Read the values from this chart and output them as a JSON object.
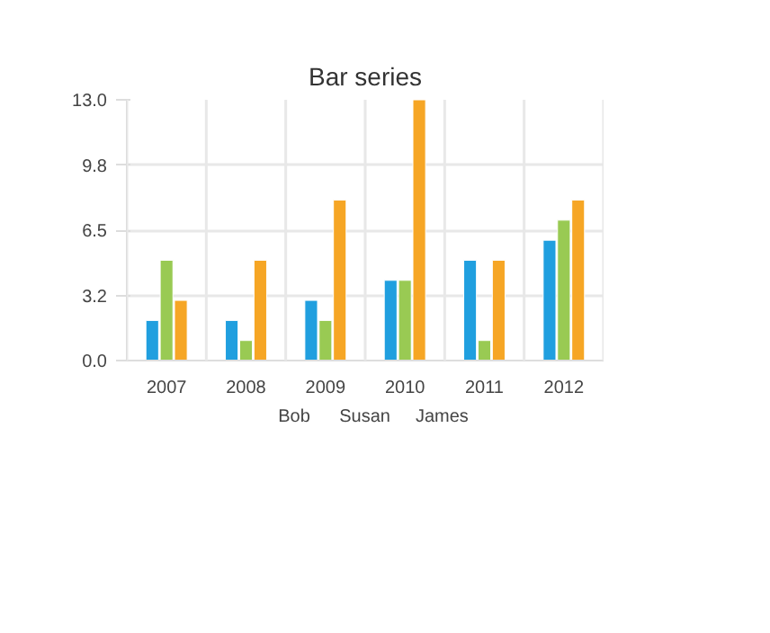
{
  "chart_data": {
    "type": "bar",
    "title": "Bar series",
    "categories": [
      "2007",
      "2008",
      "2009",
      "2010",
      "2011",
      "2012"
    ],
    "series": [
      {
        "name": "Bob",
        "color": "#209fdf",
        "values": [
          2,
          2,
          3,
          4,
          5,
          6
        ]
      },
      {
        "name": "Susan",
        "color": "#99ca53",
        "values": [
          5,
          1,
          2,
          4,
          1,
          7
        ]
      },
      {
        "name": "James",
        "color": "#f6a625",
        "values": [
          3,
          5,
          8,
          13,
          5,
          8
        ]
      }
    ],
    "ylim": [
      0,
      13
    ],
    "yticks": [
      {
        "value": 0,
        "label": "0.0"
      },
      {
        "value": 3.25,
        "label": "3.2"
      },
      {
        "value": 6.5,
        "label": "6.5"
      },
      {
        "value": 9.75,
        "label": "9.8"
      },
      {
        "value": 13,
        "label": "13.0"
      }
    ],
    "grid": true,
    "legend": "bottom"
  }
}
